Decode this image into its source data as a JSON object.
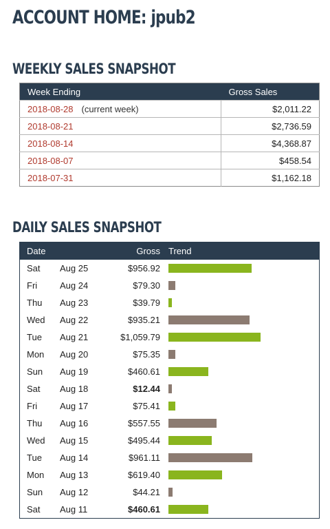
{
  "account": {
    "title": "ACCOUNT HOME:",
    "user": "jpub2"
  },
  "weekly": {
    "title": "WEEKLY SALES SNAPSHOT",
    "headers": {
      "week": "Week Ending",
      "gross": "Gross Sales"
    },
    "rows": [
      {
        "week": "2018-08-28",
        "note": "(current week)",
        "gross": "$2,011.22"
      },
      {
        "week": "2018-08-21",
        "note": "",
        "gross": "$2,736.59"
      },
      {
        "week": "2018-08-14",
        "note": "",
        "gross": "$4,368.87"
      },
      {
        "week": "2018-08-07",
        "note": "",
        "gross": "$458.54"
      },
      {
        "week": "2018-07-31",
        "note": "",
        "gross": "$1,162.18"
      }
    ]
  },
  "daily": {
    "title": "DAILY SALES SNAPSHOT",
    "headers": {
      "date": "Date",
      "gross": "Gross",
      "trend": "Trend"
    },
    "colors": {
      "green": "#8ab51e",
      "brown": "#8c7b71"
    },
    "rows": [
      {
        "dow": "Sat",
        "date": "Aug 25",
        "gross": "$956.92",
        "value": 956.92,
        "bar": "green",
        "bold": false
      },
      {
        "dow": "Fri",
        "date": "Aug 24",
        "gross": "$79.30",
        "value": 79.3,
        "bar": "brown",
        "bold": false
      },
      {
        "dow": "Thu",
        "date": "Aug 23",
        "gross": "$39.79",
        "value": 39.79,
        "bar": "green",
        "bold": false
      },
      {
        "dow": "Wed",
        "date": "Aug 22",
        "gross": "$935.21",
        "value": 935.21,
        "bar": "brown",
        "bold": false
      },
      {
        "dow": "Tue",
        "date": "Aug 21",
        "gross": "$1,059.79",
        "value": 1059.79,
        "bar": "green",
        "bold": false
      },
      {
        "dow": "Mon",
        "date": "Aug 20",
        "gross": "$75.35",
        "value": 75.35,
        "bar": "brown",
        "bold": false
      },
      {
        "dow": "Sun",
        "date": "Aug 19",
        "gross": "$460.61",
        "value": 460.61,
        "bar": "green",
        "bold": false
      },
      {
        "dow": "Sat",
        "date": "Aug 18",
        "gross": "$12.44",
        "value": 12.44,
        "bar": "brown",
        "bold": true
      },
      {
        "dow": "Fri",
        "date": "Aug 17",
        "gross": "$75.41",
        "value": 75.41,
        "bar": "green",
        "bold": false
      },
      {
        "dow": "Thu",
        "date": "Aug 16",
        "gross": "$557.55",
        "value": 557.55,
        "bar": "brown",
        "bold": false
      },
      {
        "dow": "Wed",
        "date": "Aug 15",
        "gross": "$495.44",
        "value": 495.44,
        "bar": "green",
        "bold": false
      },
      {
        "dow": "Tue",
        "date": "Aug 14",
        "gross": "$961.11",
        "value": 961.11,
        "bar": "brown",
        "bold": false
      },
      {
        "dow": "Mon",
        "date": "Aug 13",
        "gross": "$619.40",
        "value": 619.4,
        "bar": "green",
        "bold": false
      },
      {
        "dow": "Sun",
        "date": "Aug 12",
        "gross": "$44.21",
        "value": 44.21,
        "bar": "brown",
        "bold": false
      },
      {
        "dow": "Sat",
        "date": "Aug 11",
        "gross": "$460.61",
        "value": 460.61,
        "bar": "green",
        "bold": true
      }
    ]
  }
}
